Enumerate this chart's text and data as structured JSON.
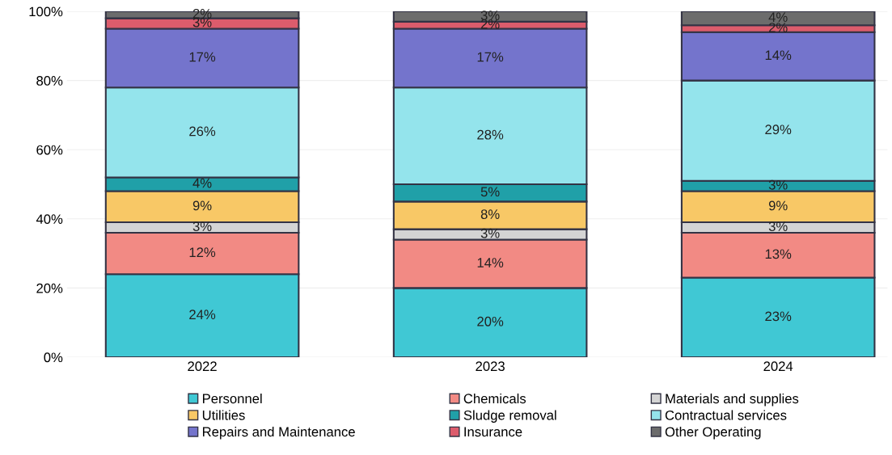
{
  "chart_data": {
    "type": "bar",
    "stacked": true,
    "categories": [
      "2022",
      "2023",
      "2024"
    ],
    "ylim": [
      0,
      100
    ],
    "yticks": [
      {
        "value": 0,
        "label": "0%"
      },
      {
        "value": 20,
        "label": "20%"
      },
      {
        "value": 40,
        "label": "40%"
      },
      {
        "value": 60,
        "label": "60%"
      },
      {
        "value": 80,
        "label": "80%"
      },
      {
        "value": 100,
        "label": "100%"
      }
    ],
    "grid": "y",
    "legend": "bottom",
    "series": [
      {
        "name": "Personnel",
        "color": "#40c8d4",
        "values": [
          24,
          20,
          23
        ],
        "value_labels": [
          "24%",
          "20%",
          "23%"
        ]
      },
      {
        "name": "Chemicals",
        "color": "#f28a84",
        "values": [
          12,
          14,
          13
        ],
        "value_labels": [
          "12%",
          "14%",
          "13%"
        ]
      },
      {
        "name": "Materials and supplies",
        "color": "#d4d4d4",
        "values": [
          3,
          3,
          3
        ],
        "value_labels": [
          "3%",
          "3%",
          "3%"
        ]
      },
      {
        "name": "Utilities",
        "color": "#f8c866",
        "values": [
          9,
          8,
          9
        ],
        "value_labels": [
          "9%",
          "8%",
          "9%"
        ]
      },
      {
        "name": "Sludge removal",
        "color": "#20a0a8",
        "values": [
          4,
          5,
          3
        ],
        "value_labels": [
          "4%",
          "5%",
          "3%"
        ]
      },
      {
        "name": "Contractual services",
        "color": "#94e4ec",
        "values": [
          26,
          28,
          29
        ],
        "value_labels": [
          "26%",
          "28%",
          "29%"
        ]
      },
      {
        "name": "Repairs and Maintenance",
        "color": "#7474cc",
        "values": [
          17,
          17,
          14
        ],
        "value_labels": [
          "17%",
          "17%",
          "14%"
        ]
      },
      {
        "name": "Insurance",
        "color": "#dc5c6c",
        "values": [
          3,
          2,
          2
        ],
        "value_labels": [
          "3%",
          "2%",
          "2%"
        ]
      },
      {
        "name": "Other Operating",
        "color": "#6c6c6c",
        "values": [
          2,
          3,
          4
        ],
        "value_labels": [
          "2%",
          "3%",
          "4%"
        ]
      }
    ]
  }
}
